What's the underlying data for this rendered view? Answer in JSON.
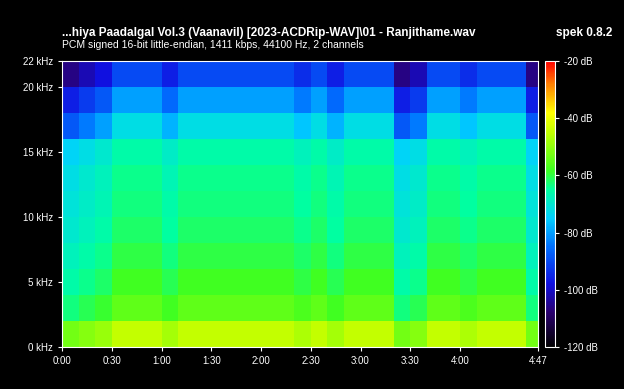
{
  "chart_data": {
    "type": "heatmap",
    "title": "...hiya Paadalgal Vol.3 (Vaanavil) [2023-ACDRip-WAV]\\01 - Ranjithame.wav",
    "subtitle": "PCM signed 16-bit little-endian, 1411 kbps, 44100 Hz, 2 channels",
    "annotations": [
      "spek 0.8.2"
    ],
    "xlim": [
      0,
      287
    ],
    "ylim": [
      0,
      22
    ],
    "xticks": [
      {
        "value": 0,
        "label": "0:00"
      },
      {
        "value": 30,
        "label": "0:30"
      },
      {
        "value": 60,
        "label": "1:00"
      },
      {
        "value": 90,
        "label": "1:30"
      },
      {
        "value": 120,
        "label": "2:00"
      },
      {
        "value": 150,
        "label": "2:30"
      },
      {
        "value": 180,
        "label": "3:00"
      },
      {
        "value": 210,
        "label": "3:30"
      },
      {
        "value": 240,
        "label": "4:00"
      },
      {
        "value": 287,
        "label": "4:47"
      }
    ],
    "yticks": [
      {
        "value": 0,
        "label": "0 kHz"
      },
      {
        "value": 5,
        "label": "5 kHz"
      },
      {
        "value": 10,
        "label": "10 kHz"
      },
      {
        "value": 15,
        "label": "15 kHz"
      },
      {
        "value": 20,
        "label": "20 kHz"
      },
      {
        "value": 22,
        "label": "22 kHz"
      }
    ],
    "x_edges": [
      0,
      10,
      20,
      30,
      40,
      50,
      60,
      70,
      80,
      90,
      100,
      110,
      120,
      130,
      140,
      150,
      160,
      170,
      180,
      190,
      200,
      210,
      220,
      230,
      240,
      250,
      260,
      270,
      280,
      287
    ],
    "y_edges": [
      0,
      2,
      4,
      6,
      8,
      10,
      12,
      14,
      16,
      18,
      20,
      22
    ],
    "cells": [
      [
        -53,
        -51,
        -49,
        -45,
        -45,
        -45,
        -48,
        -45,
        -45,
        -45,
        -45,
        -45,
        -45,
        -45,
        -47,
        -45,
        -48,
        -45,
        -45,
        -45,
        -53,
        -51,
        -45,
        -45,
        -47,
        -45,
        -45,
        -45,
        -53
      ],
      [
        -63,
        -61,
        -59,
        -55,
        -55,
        -55,
        -58,
        -55,
        -55,
        -55,
        -55,
        -55,
        -55,
        -55,
        -57,
        -55,
        -58,
        -55,
        -55,
        -55,
        -63,
        -61,
        -55,
        -55,
        -57,
        -55,
        -55,
        -55,
        -63
      ],
      [
        -66,
        -64,
        -62,
        -58,
        -58,
        -58,
        -61,
        -58,
        -58,
        -58,
        -58,
        -58,
        -58,
        -58,
        -60,
        -58,
        -61,
        -58,
        -58,
        -58,
        -66,
        -64,
        -58,
        -58,
        -60,
        -58,
        -58,
        -58,
        -66
      ],
      [
        -68,
        -66,
        -64,
        -60,
        -60,
        -60,
        -63,
        -60,
        -60,
        -60,
        -60,
        -60,
        -60,
        -60,
        -62,
        -60,
        -63,
        -60,
        -60,
        -60,
        -68,
        -66,
        -60,
        -60,
        -62,
        -60,
        -60,
        -60,
        -68
      ],
      [
        -70,
        -68,
        -66,
        -62,
        -62,
        -62,
        -65,
        -62,
        -62,
        -62,
        -62,
        -62,
        -62,
        -62,
        -64,
        -62,
        -65,
        -62,
        -62,
        -62,
        -70,
        -68,
        -62,
        -62,
        -64,
        -62,
        -62,
        -62,
        -70
      ],
      [
        -71,
        -69,
        -67,
        -63,
        -63,
        -63,
        -66,
        -63,
        -63,
        -63,
        -63,
        -63,
        -63,
        -63,
        -65,
        -63,
        -66,
        -63,
        -63,
        -63,
        -71,
        -69,
        -63,
        -63,
        -65,
        -63,
        -63,
        -63,
        -71
      ],
      [
        -72,
        -70,
        -68,
        -64,
        -64,
        -64,
        -67,
        -64,
        -64,
        -64,
        -64,
        -64,
        -64,
        -64,
        -66,
        -64,
        -67,
        -64,
        -64,
        -64,
        -72,
        -70,
        -64,
        -64,
        -66,
        -64,
        -64,
        -64,
        -72
      ],
      [
        -74,
        -72,
        -70,
        -66,
        -66,
        -66,
        -69,
        -66,
        -66,
        -66,
        -66,
        -66,
        -66,
        -66,
        -68,
        -66,
        -69,
        -66,
        -66,
        -66,
        -74,
        -72,
        -66,
        -66,
        -68,
        -66,
        -66,
        -66,
        -74
      ],
      [
        -88,
        -84,
        -80,
        -72,
        -72,
        -72,
        -78,
        -72,
        -72,
        -72,
        -72,
        -72,
        -72,
        -72,
        -76,
        -72,
        -78,
        -72,
        -72,
        -72,
        -88,
        -84,
        -72,
        -72,
        -76,
        -72,
        -72,
        -72,
        -88
      ],
      [
        -96,
        -92,
        -88,
        -80,
        -80,
        -80,
        -86,
        -80,
        -80,
        -80,
        -80,
        -80,
        -80,
        -80,
        -84,
        -80,
        -86,
        -80,
        -80,
        -80,
        -96,
        -92,
        -80,
        -80,
        -84,
        -80,
        -80,
        -80,
        -96
      ],
      [
        -106,
        -102,
        -98,
        -90,
        -90,
        -90,
        -96,
        -90,
        -90,
        -90,
        -90,
        -90,
        -90,
        -90,
        -94,
        -90,
        -96,
        -90,
        -90,
        -90,
        -106,
        -102,
        -90,
        -90,
        -94,
        -90,
        -90,
        -90,
        -106
      ]
    ],
    "colorbar": {
      "range": [
        -120,
        -20
      ],
      "ticks": [
        {
          "value": -20,
          "label": "-20 dB"
        },
        {
          "value": -40,
          "label": "-40 dB"
        },
        {
          "value": -60,
          "label": "-60 dB"
        },
        {
          "value": -80,
          "label": "-80 dB"
        },
        {
          "value": -100,
          "label": "-100 dB"
        },
        {
          "value": -120,
          "label": "-120 dB"
        }
      ]
    }
  }
}
